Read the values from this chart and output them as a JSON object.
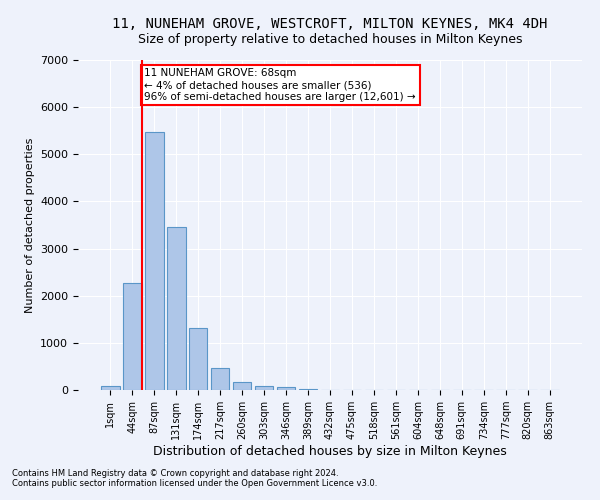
{
  "title1": "11, NUNEHAM GROVE, WESTCROFT, MILTON KEYNES, MK4 4DH",
  "title2": "Size of property relative to detached houses in Milton Keynes",
  "xlabel": "Distribution of detached houses by size in Milton Keynes",
  "ylabel": "Number of detached properties",
  "footnote1": "Contains HM Land Registry data © Crown copyright and database right 2024.",
  "footnote2": "Contains public sector information licensed under the Open Government Licence v3.0.",
  "bar_labels": [
    "1sqm",
    "44sqm",
    "87sqm",
    "131sqm",
    "174sqm",
    "217sqm",
    "260sqm",
    "303sqm",
    "346sqm",
    "389sqm",
    "432sqm",
    "475sqm",
    "518sqm",
    "561sqm",
    "604sqm",
    "648sqm",
    "691sqm",
    "734sqm",
    "777sqm",
    "820sqm",
    "863sqm"
  ],
  "bar_values": [
    75,
    2280,
    5480,
    3450,
    1310,
    460,
    160,
    90,
    55,
    30,
    0,
    0,
    0,
    0,
    0,
    0,
    0,
    0,
    0,
    0,
    0
  ],
  "bar_color": "#aec6e8",
  "bar_edge_color": "#5a96c8",
  "vline_x": 1.45,
  "vline_color": "red",
  "annotation_text": "11 NUNEHAM GROVE: 68sqm\n← 4% of detached houses are smaller (536)\n96% of semi-detached houses are larger (12,601) →",
  "annotation_box_color": "white",
  "annotation_box_edge": "red",
  "ylim": [
    0,
    7000
  ],
  "yticks": [
    0,
    1000,
    2000,
    3000,
    4000,
    5000,
    6000,
    7000
  ],
  "background_color": "#eef2fb",
  "grid_color": "white",
  "title1_fontsize": 10,
  "title2_fontsize": 9,
  "xlabel_fontsize": 9,
  "ylabel_fontsize": 8,
  "annot_fontsize": 7.5,
  "tick_fontsize": 7,
  "ytick_fontsize": 8,
  "footnote_fontsize": 6
}
